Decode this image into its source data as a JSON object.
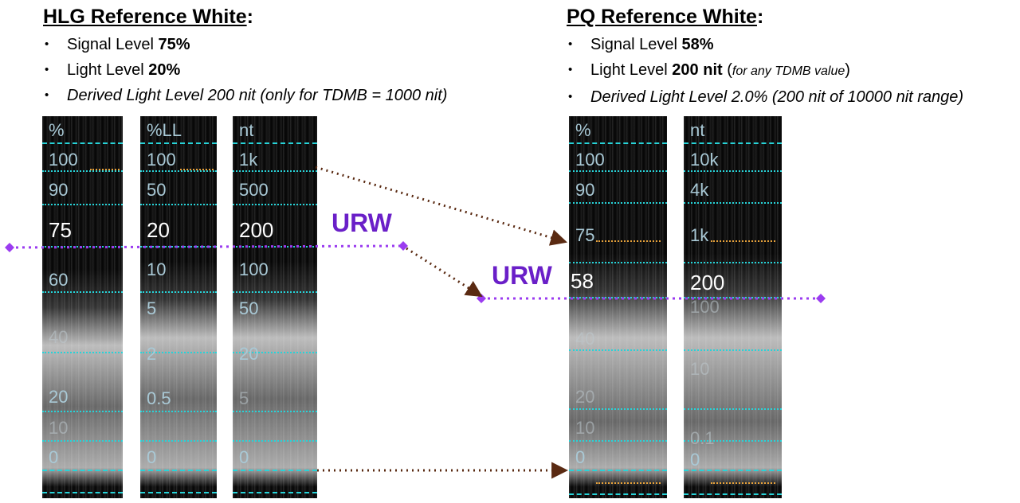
{
  "hlg": {
    "title": "HLG Reference White",
    "title_colon": ":",
    "bullets": [
      {
        "prefix": "Signal Level ",
        "bold": "75%"
      },
      {
        "prefix": "Light Level ",
        "bold": "20%"
      },
      {
        "italic": "Derived Light Level 200 nit (only for TDMB = 1000 nit)"
      }
    ]
  },
  "pq": {
    "title": "PQ Reference White",
    "title_colon": ":",
    "bullets": [
      {
        "prefix": "Signal Level ",
        "bold": "58%"
      },
      {
        "prefix": "Light Level ",
        "bold": "200 nit",
        "note_open": " (",
        "note": "for any TDMB value",
        "note_close": ")"
      },
      {
        "italic": "Derived Light Level 2.0% (200 nit of 10000 nit range)"
      }
    ]
  },
  "scopes": {
    "hlg_signal": {
      "header": "%",
      "ticks": [
        "100",
        "90",
        "75",
        "60",
        "40",
        "20",
        "10",
        "0"
      ]
    },
    "hlg_light_pct": {
      "header": "%LL",
      "ticks": [
        "100",
        "50",
        "20",
        "10",
        "5",
        "2",
        "0.5",
        "0"
      ]
    },
    "hlg_nits": {
      "header": "nt",
      "ticks": [
        "1k",
        "500",
        "200",
        "100",
        "50",
        "20",
        "5",
        "0"
      ]
    },
    "pq_signal": {
      "header": "%",
      "ticks": [
        "100",
        "90",
        "75",
        "58",
        "40",
        "20",
        "10",
        "0"
      ]
    },
    "pq_nits": {
      "header": "nt",
      "ticks": [
        "10k",
        "4k",
        "1k",
        "200",
        "100",
        "10",
        "0.1",
        "0"
      ]
    }
  },
  "labels": {
    "urw_left": "URW",
    "urw_right": "URW"
  },
  "colors": {
    "urw": "#6a1fc8",
    "urw_line": "#9b3cf0",
    "arrow": "#5a2a12",
    "graticule": "#27d3d8",
    "orange_marker": "#e6a13a"
  }
}
